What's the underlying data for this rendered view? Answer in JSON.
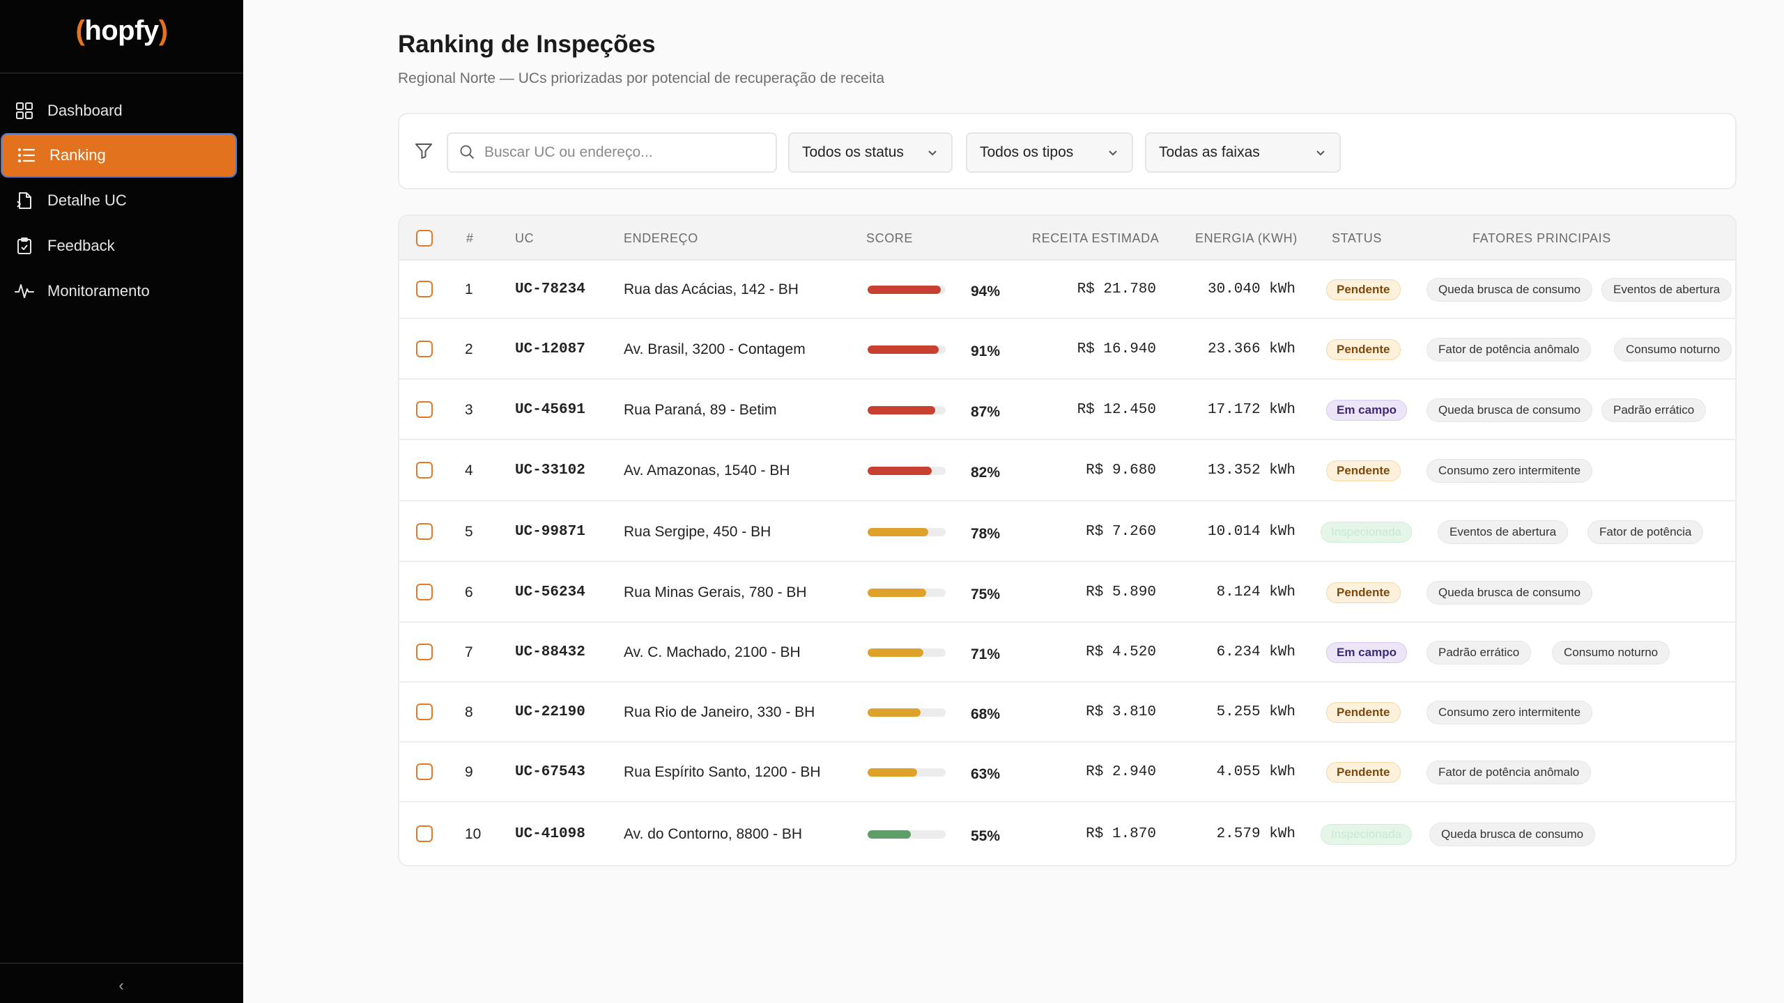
{
  "brand": {
    "name": "hopfy"
  },
  "nav": {
    "items": [
      {
        "label": "Dashboard",
        "icon": "grid-icon"
      },
      {
        "label": "Ranking",
        "icon": "list-icon"
      },
      {
        "label": "Detalhe UC",
        "icon": "document-icon"
      },
      {
        "label": "Feedback",
        "icon": "clipboard-icon"
      },
      {
        "label": "Monitoramento",
        "icon": "pulse-icon"
      }
    ],
    "active": "Ranking",
    "collapse_label": "‹"
  },
  "page": {
    "title": "Ranking de Inspeções",
    "subtitle": "Regional Norte — UCs priorizadas por potencial de recuperação de receita"
  },
  "filters": {
    "search_placeholder": "Buscar UC ou endereço...",
    "status": "Todos os status",
    "type": "Todos os tipos",
    "range": "Todas as faixas"
  },
  "table": {
    "headers": [
      "#",
      "UC",
      "ENDEREÇO",
      "SCORE",
      "RECEITA ESTIMADA",
      "ENERGIA (KWH)",
      "STATUS",
      "FATORES PRINCIPAIS"
    ],
    "colors": {
      "high": "#c8402f",
      "mid": "#dea22a",
      "low": "#5f9e68"
    },
    "rows": [
      {
        "n": "1",
        "uc": "UC-78234",
        "addr": "Rua das Acácias, 142 - BH",
        "score": 94,
        "score_label": "94%",
        "level": "high",
        "rev": "R$ 21.780",
        "energy": "30.040 kWh",
        "status": "Pendente",
        "status_kind": "pend",
        "factors": [
          "Queda brusca de consumo",
          "Eventos de abertura"
        ]
      },
      {
        "n": "2",
        "uc": "UC-12087",
        "addr": "Av. Brasil, 3200 - Contagem",
        "score": 91,
        "score_label": "91%",
        "level": "high",
        "rev": "R$ 16.940",
        "energy": "23.366 kWh",
        "status": "Pendente",
        "status_kind": "pend",
        "factors": [
          "Fator de potência anômalo",
          "Consumo noturno"
        ]
      },
      {
        "n": "3",
        "uc": "UC-45691",
        "addr": "Rua Paraná, 89 - Betim",
        "score": 87,
        "score_label": "87%",
        "level": "high",
        "rev": "R$ 12.450",
        "energy": "17.172 kWh",
        "status": "Em campo",
        "status_kind": "camp",
        "factors": [
          "Queda brusca de consumo",
          "Padrão errático"
        ]
      },
      {
        "n": "4",
        "uc": "UC-33102",
        "addr": "Av. Amazonas, 1540 - BH",
        "score": 82,
        "score_label": "82%",
        "level": "high",
        "rev": "R$ 9.680",
        "energy": "13.352 kWh",
        "status": "Pendente",
        "status_kind": "pend",
        "factors": [
          "Consumo zero intermitente"
        ]
      },
      {
        "n": "5",
        "uc": "UC-99871",
        "addr": "Rua Sergipe, 450 - BH",
        "score": 78,
        "score_label": "78%",
        "level": "mid",
        "rev": "R$ 7.260",
        "energy": "10.014 kWh",
        "status": "Inspecionada",
        "status_kind": "insp",
        "factors": [
          "Eventos de abertura",
          "Fator de potência"
        ]
      },
      {
        "n": "6",
        "uc": "UC-56234",
        "addr": "Rua Minas Gerais, 780 - BH",
        "score": 75,
        "score_label": "75%",
        "level": "mid",
        "rev": "R$ 5.890",
        "energy": "8.124 kWh",
        "status": "Pendente",
        "status_kind": "pend",
        "factors": [
          "Queda brusca de consumo"
        ]
      },
      {
        "n": "7",
        "uc": "UC-88432",
        "addr": "Av. C. Machado, 2100 - BH",
        "score": 71,
        "score_label": "71%",
        "level": "mid",
        "rev": "R$ 4.520",
        "energy": "6.234 kWh",
        "status": "Em campo",
        "status_kind": "camp",
        "factors": [
          "Padrão errático",
          "Consumo noturno"
        ]
      },
      {
        "n": "8",
        "uc": "UC-22190",
        "addr": "Rua Rio de Janeiro, 330 - BH",
        "score": 68,
        "score_label": "68%",
        "level": "mid",
        "rev": "R$ 3.810",
        "energy": "5.255 kWh",
        "status": "Pendente",
        "status_kind": "pend",
        "factors": [
          "Consumo zero intermitente"
        ]
      },
      {
        "n": "9",
        "uc": "UC-67543",
        "addr": "Rua Espírito Santo, 1200 - BH",
        "score": 63,
        "score_label": "63%",
        "level": "mid",
        "rev": "R$ 2.940",
        "energy": "4.055 kWh",
        "status": "Pendente",
        "status_kind": "pend",
        "factors": [
          "Fator de potência anômalo"
        ]
      },
      {
        "n": "10",
        "uc": "UC-41098",
        "addr": "Av. do Contorno, 8800 - BH",
        "score": 55,
        "score_label": "55%",
        "level": "low",
        "rev": "R$ 1.870",
        "energy": "2.579 kWh",
        "status": "Inspecionada",
        "status_kind": "insp",
        "factors": [
          "Queda brusca de consumo"
        ]
      }
    ]
  }
}
